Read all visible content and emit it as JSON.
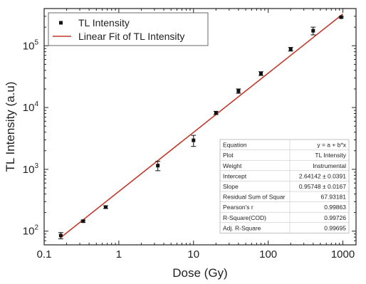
{
  "chart_data": {
    "type": "scatter",
    "x_scale": "log",
    "y_scale": "log",
    "xlabel": "Dose (Gy)",
    "ylabel": "TL Intensity (a.u)",
    "xlim": [
      0.1,
      1500
    ],
    "ylim": [
      60,
      400000
    ],
    "x_ticks": [
      {
        "value": 0.1,
        "label": "0.1"
      },
      {
        "value": 1,
        "label": "1"
      },
      {
        "value": 10,
        "label": "10"
      },
      {
        "value": 100,
        "label": "100"
      },
      {
        "value": 1000,
        "label": "1000"
      }
    ],
    "y_ticks": [
      {
        "value": 100,
        "base": "10",
        "exp": "2"
      },
      {
        "value": 1000,
        "base": "10",
        "exp": "3"
      },
      {
        "value": 10000,
        "base": "10",
        "exp": "4"
      },
      {
        "value": 100000,
        "base": "10",
        "exp": "5"
      }
    ],
    "series": [
      {
        "name": "TL Intensity",
        "kind": "points",
        "color": "#111111",
        "points": [
          {
            "x": 0.167,
            "y": 85,
            "err": 10
          },
          {
            "x": 0.333,
            "y": 145,
            "err": 6
          },
          {
            "x": 0.667,
            "y": 245,
            "err": 12
          },
          {
            "x": 3.33,
            "y": 1150,
            "err": 200
          },
          {
            "x": 10,
            "y": 2950,
            "err": 600
          },
          {
            "x": 20,
            "y": 8200,
            "err": 500
          },
          {
            "x": 40,
            "y": 18500,
            "err": 1500
          },
          {
            "x": 80,
            "y": 35500,
            "err": 2500
          },
          {
            "x": 200,
            "y": 88000,
            "err": 6000
          },
          {
            "x": 400,
            "y": 175000,
            "err": 25000
          },
          {
            "x": 950,
            "y": 290000,
            "err": 8000
          }
        ]
      },
      {
        "name": "Linear Fit of TL Intensity",
        "kind": "line",
        "color": "#c0392b",
        "intercept": 2.64142,
        "slope": 0.95748,
        "x_range": [
          0.165,
          1000
        ]
      }
    ],
    "legend": {
      "position": "top-left",
      "entries": [
        "TL Intensity",
        "Linear Fit of TL Intensity"
      ]
    },
    "stats_table": [
      [
        "Equation",
        "y = a + b*x"
      ],
      [
        "Plot",
        "TL Intensity"
      ],
      [
        "Weight",
        "Instrumental"
      ],
      [
        "Intercept",
        "2.64142 ± 0.0391"
      ],
      [
        "Slope",
        "0.95748 ± 0.0167"
      ],
      [
        "Residual Sum of Squar",
        "67.93181"
      ],
      [
        "Pearson's r",
        "0.99863"
      ],
      [
        "R-Square(COD)",
        "0.99726"
      ],
      [
        "Adj. R-Square",
        "0.99695"
      ]
    ]
  }
}
